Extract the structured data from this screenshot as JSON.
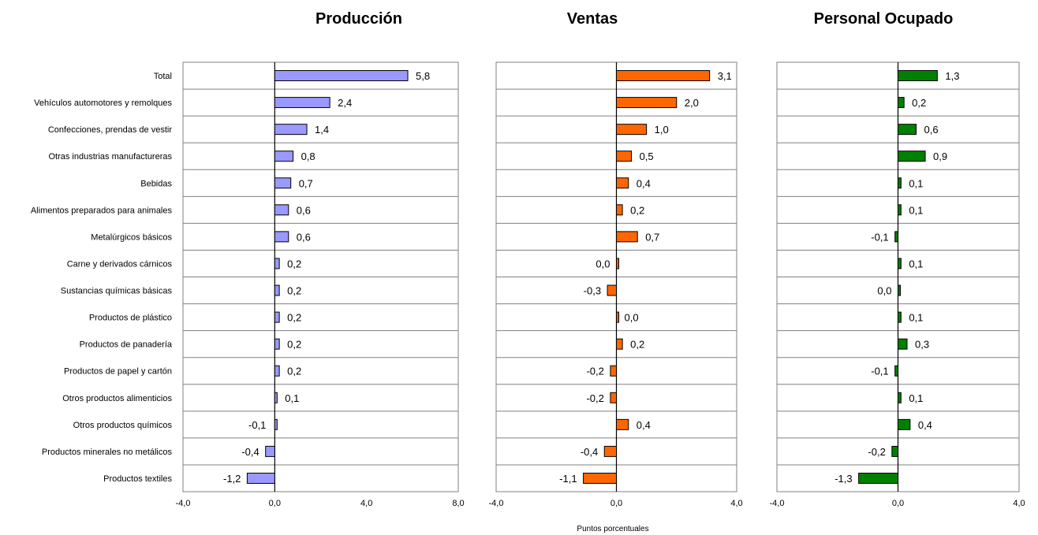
{
  "x_axis_label": "Puntos porcentuales",
  "chart_data": [
    {
      "type": "bar",
      "orientation": "horizontal",
      "title": "Producción",
      "color": "#9999ff",
      "xlim": [
        -4,
        8
      ],
      "ticks": [
        "-4,0",
        "0,0",
        "4,0",
        "8,0"
      ],
      "categories": [
        "Total",
        "Vehículos automotores y remolques",
        "Confecciones, prendas de vestir",
        "Otras industrias manufactureras",
        "Bebidas",
        "Alimentos preparados para animales",
        "Metalúrgicos básicos",
        "Carne y derivados cárnicos",
        "Sustancias químicas básicas",
        "Productos de plástico",
        "Productos de panadería",
        "Productos de papel y cartón",
        "Otros productos alimenticios",
        "Otros productos químicos",
        "Productos minerales no metálicos",
        "Productos textiles"
      ],
      "values": [
        5.8,
        2.4,
        1.4,
        0.8,
        0.7,
        0.6,
        0.6,
        0.2,
        0.2,
        0.2,
        0.2,
        0.2,
        0.1,
        -0.1,
        -0.4,
        -1.2
      ],
      "labels": [
        "5,8",
        "2,4",
        "1,4",
        "0,8",
        "0,7",
        "0,6",
        "0,6",
        "0,2",
        "0,2",
        "0,2",
        "0,2",
        "0,2",
        "0,1",
        "-0,1",
        "-0,4",
        "-1,2"
      ]
    },
    {
      "type": "bar",
      "orientation": "horizontal",
      "title": "Ventas",
      "color": "#ff6600",
      "xlim": [
        -4,
        4
      ],
      "ticks": [
        "-4,0",
        "0,0",
        "4,0"
      ],
      "values": [
        3.1,
        2.0,
        1.0,
        0.5,
        0.4,
        0.2,
        0.7,
        0.0,
        -0.3,
        0.0,
        0.2,
        -0.2,
        -0.2,
        0.4,
        -0.4,
        -1.1
      ],
      "labels": [
        "3,1",
        "2,0",
        "1,0",
        "0,5",
        "0,4",
        "0,2",
        "0,7",
        "0,0",
        "-0,3",
        "0,0",
        "0,2",
        "-0,2",
        "-0,2",
        "0,4",
        "-0,4",
        "-1,1"
      ]
    },
    {
      "type": "bar",
      "orientation": "horizontal",
      "title": "Personal Ocupado",
      "color": "#008000",
      "xlim": [
        -4,
        4
      ],
      "ticks": [
        "-4,0",
        "0,0",
        "4,0"
      ],
      "values": [
        1.3,
        0.2,
        0.6,
        0.9,
        0.1,
        0.1,
        -0.1,
        0.1,
        0.0,
        0.1,
        0.3,
        -0.1,
        0.1,
        0.4,
        -0.2,
        -1.3
      ],
      "labels": [
        "1,3",
        "0,2",
        "0,6",
        "0,9",
        "0,1",
        "0,1",
        "-0,1",
        "0,1",
        "0,0",
        "0,1",
        "0,3",
        "-0,1",
        "0,1",
        "0,4",
        "-0,2",
        "-1,3"
      ]
    }
  ]
}
